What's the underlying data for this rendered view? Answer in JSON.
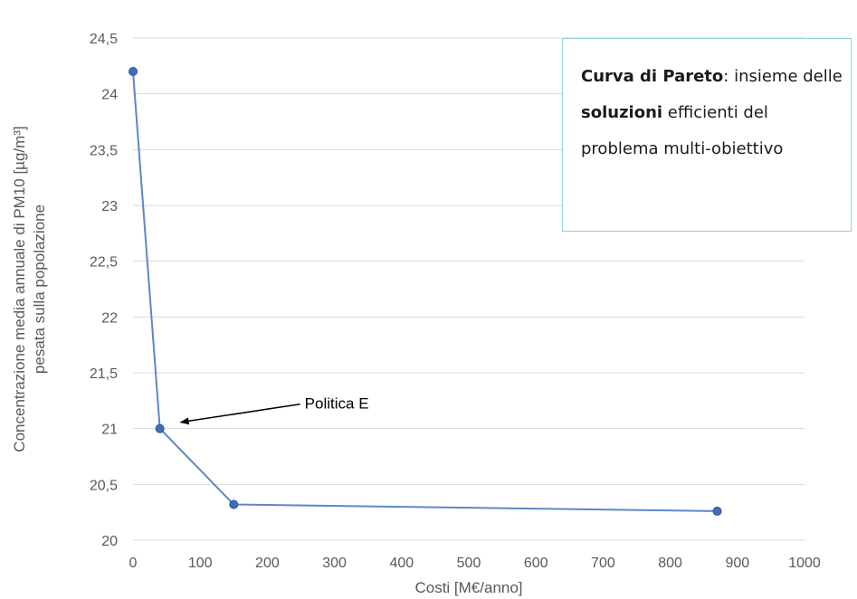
{
  "chart_data": {
    "type": "line",
    "title": "",
    "xlabel": "Costi [M€/anno]",
    "ylabel_lines": [
      "Concentrazione media annuale di PM10 [µg/m³]",
      "pesata sulla popolazione"
    ],
    "xlim": [
      0,
      1000
    ],
    "ylim": [
      20,
      24.5
    ],
    "x_ticks": [
      "0",
      "100",
      "200",
      "300",
      "400",
      "500",
      "600",
      "700",
      "800",
      "900",
      "1000"
    ],
    "y_ticks": [
      "20",
      "20,5",
      "21",
      "21,5",
      "22",
      "22,5",
      "23",
      "23,5",
      "24",
      "24,5"
    ],
    "grid": "horizontal",
    "series": [
      {
        "x": [
          0,
          40,
          150,
          870
        ],
        "y": [
          24.2,
          21.0,
          20.32,
          20.26
        ]
      }
    ],
    "annotations": [
      {
        "text": "Politica E",
        "x": 40,
        "y": 21.0
      }
    ],
    "colors": {
      "line": "#5b87c7",
      "marker": "#3f6fb8",
      "grid": "#d9d9d9",
      "callout_border": "#8ecfe0"
    }
  },
  "callout": {
    "part1_bold": "Curva di Pareto",
    "part2": ": insieme delle ",
    "part3_bold": "soluzioni",
    "part4": " efficienti del problema multi-obiettivo"
  }
}
